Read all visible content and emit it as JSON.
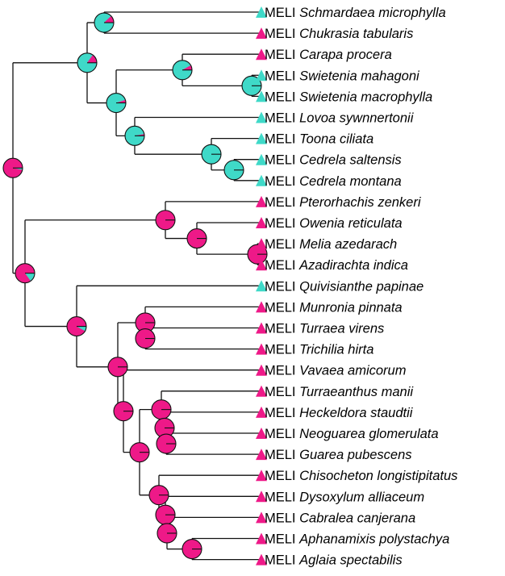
{
  "colors": {
    "magenta": "#ee1988",
    "cyan": "#3fd9c8"
  },
  "tips": [
    {
      "prefix": "MELI",
      "species": "Schmardaea microphylla",
      "state": "cyan"
    },
    {
      "prefix": "MELI",
      "species": "Chukrasia tabularis",
      "state": "magenta"
    },
    {
      "prefix": "MELI",
      "species": "Carapa procera",
      "state": "magenta"
    },
    {
      "prefix": "MELI",
      "species": "Swietenia mahagoni",
      "state": "cyan"
    },
    {
      "prefix": "MELI",
      "species": "Swietenia macrophylla",
      "state": "cyan"
    },
    {
      "prefix": "MELI",
      "species": "Lovoa sywnnertonii",
      "state": "cyan"
    },
    {
      "prefix": "MELI",
      "species": "Toona ciliata",
      "state": "cyan"
    },
    {
      "prefix": "MELI",
      "species": "Cedrela saltensis",
      "state": "cyan"
    },
    {
      "prefix": "MELI",
      "species": "Cedrela montana",
      "state": "cyan"
    },
    {
      "prefix": "MELI",
      "species": "Pterorhachis zenkeri",
      "state": "magenta"
    },
    {
      "prefix": "MELI",
      "species": "Owenia reticulata",
      "state": "magenta"
    },
    {
      "prefix": "MELI",
      "species": "Melia azedarach",
      "state": "magenta"
    },
    {
      "prefix": "MELI",
      "species": "Azadirachta indica",
      "state": "magenta"
    },
    {
      "prefix": "MELI",
      "species": "Quivisianthe papinae",
      "state": "cyan"
    },
    {
      "prefix": "MELI",
      "species": "Munronia pinnata",
      "state": "magenta"
    },
    {
      "prefix": "MELI",
      "species": "Turraea virens",
      "state": "magenta"
    },
    {
      "prefix": "MELI",
      "species": "Trichilia hirta",
      "state": "magenta"
    },
    {
      "prefix": "MELI",
      "species": "Vavaea amicorum",
      "state": "magenta"
    },
    {
      "prefix": "MELI",
      "species": "Turraeanthus manii",
      "state": "magenta"
    },
    {
      "prefix": "MELI",
      "species": "Heckeldora staudtii",
      "state": "magenta"
    },
    {
      "prefix": "MELI",
      "species": "Neoguarea glomerulata",
      "state": "magenta"
    },
    {
      "prefix": "MELI",
      "species": "Guarea pubescens",
      "state": "magenta"
    },
    {
      "prefix": "MELI",
      "species": "Chisocheton longistipitatus",
      "state": "magenta"
    },
    {
      "prefix": "MELI",
      "species": "Dysoxylum alliaceum",
      "state": "magenta"
    },
    {
      "prefix": "MELI",
      "species": "Cabralea canjerana",
      "state": "magenta"
    },
    {
      "prefix": "MELI",
      "species": "Aphanamixis polystachya",
      "state": "magenta"
    },
    {
      "prefix": "MELI",
      "species": "Aglaia spectabilis",
      "state": "magenta"
    }
  ],
  "nodes": [
    {
      "id": "n_root",
      "children": [
        "n_upper",
        "n_lower"
      ],
      "p_magenta": 0.97
    },
    {
      "id": "n_upper",
      "children": [
        "n_u1",
        "n_u2"
      ],
      "p_magenta": 0.15
    },
    {
      "id": "n_u1",
      "children": [
        0,
        1
      ],
      "p_magenta": 0.12
    },
    {
      "id": "n_u2",
      "children": [
        "n_u3",
        "n_u5"
      ],
      "p_magenta": 0.05
    },
    {
      "id": "n_u3",
      "children": [
        2,
        "n_u4"
      ],
      "p_magenta": 0.08
    },
    {
      "id": "n_u4",
      "children": [
        3,
        4
      ],
      "p_magenta": 0.0
    },
    {
      "id": "n_u5",
      "children": [
        5,
        "n_u6"
      ],
      "p_magenta": 0.03
    },
    {
      "id": "n_u6",
      "children": [
        6,
        "n_u7"
      ],
      "p_magenta": 0.0
    },
    {
      "id": "n_u7",
      "children": [
        7,
        8
      ],
      "p_magenta": 0.0
    },
    {
      "id": "n_lower",
      "children": [
        "n_l1",
        "n_l4"
      ],
      "p_magenta": 0.85
    },
    {
      "id": "n_l1",
      "children": [
        9,
        "n_l2"
      ],
      "p_magenta": 1.0
    },
    {
      "id": "n_l2",
      "children": [
        10,
        "n_l3"
      ],
      "p_magenta": 1.0
    },
    {
      "id": "n_l3",
      "children": [
        11,
        12
      ],
      "p_magenta": 1.0
    },
    {
      "id": "n_l4",
      "children": [
        13,
        "n_l5"
      ],
      "p_magenta": 0.92
    },
    {
      "id": "n_l5",
      "children": [
        "n_l6",
        "n_l8"
      ],
      "p_magenta": 1.0
    },
    {
      "id": "n_l6",
      "children": [
        14,
        "n_l7"
      ],
      "p_magenta": 1.0
    },
    {
      "id": "n_l7",
      "children": [
        15,
        16
      ],
      "p_magenta": 1.0
    },
    {
      "id": "n_l8",
      "children": [
        17,
        "n_l9"
      ],
      "p_magenta": 1.0
    },
    {
      "id": "n_l9",
      "children": [
        "n_l10",
        "n_l12"
      ],
      "p_magenta": 1.0
    },
    {
      "id": "n_l10",
      "children": [
        18,
        "n_l11"
      ],
      "p_magenta": 1.0
    },
    {
      "id": "n_l11",
      "children": [
        19,
        "n_l11b"
      ],
      "p_magenta": 1.0
    },
    {
      "id": "n_l11b",
      "children": [
        20,
        21
      ],
      "p_magenta": 1.0
    },
    {
      "id": "n_l12",
      "children": [
        22,
        "n_l13"
      ],
      "p_magenta": 1.0
    },
    {
      "id": "n_l13",
      "children": [
        23,
        "n_l14"
      ],
      "p_magenta": 1.0
    },
    {
      "id": "n_l14",
      "children": [
        24,
        "n_l15"
      ],
      "p_magenta": 1.0
    },
    {
      "id": "n_l15",
      "children": [
        25,
        26
      ],
      "p_magenta": 1.0
    }
  ]
}
